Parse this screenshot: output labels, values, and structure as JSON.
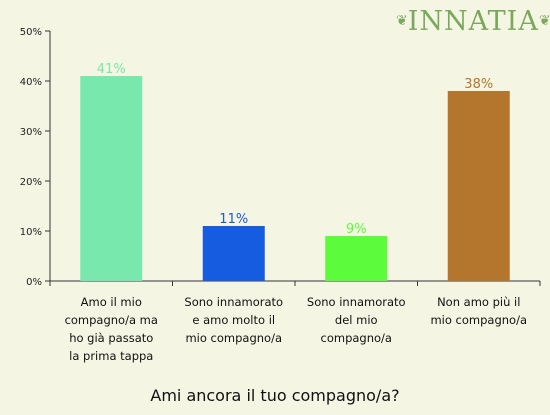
{
  "logo": {
    "text": "INNATIA",
    "left_mark": "❦",
    "right_mark": "❦"
  },
  "chart_data": {
    "type": "bar",
    "title": "Ami ancora il tuo compagno/a?",
    "categories": [
      "Amo il mio compagno/a ma ho già passato la prima tappa",
      "Sono innamorato e amo molto il mio compagno/a",
      "Sono innamorato del mio compagno/a",
      "Non amo più il mio compagno/a"
    ],
    "category_lines": [
      [
        "Amo il mio",
        "compagno/a ma",
        "ho già passato",
        "la prima tappa"
      ],
      [
        "Sono innamorato",
        "e amo molto il",
        "mio compagno/a"
      ],
      [
        "Sono innamorato",
        "del mio",
        "compagno/a"
      ],
      [
        "Non amo più il",
        "mio compagno/a"
      ]
    ],
    "values": [
      41,
      11,
      9,
      38
    ],
    "data_labels": [
      "41%",
      "11%",
      "9%",
      "38%"
    ],
    "colors": [
      "#79e8ac",
      "#155ce0",
      "#5cfb3c",
      "#b3762c"
    ],
    "label_colors": [
      "#79e8ac",
      "#155ce0",
      "#5cfb3c",
      "#b3762c"
    ],
    "ylim": [
      0,
      50
    ],
    "yticks": [
      0,
      10,
      20,
      30,
      40,
      50
    ],
    "ytick_labels": [
      "0%",
      "10%",
      "20%",
      "30%",
      "40%",
      "50%"
    ],
    "grid": false,
    "legend": "none"
  }
}
